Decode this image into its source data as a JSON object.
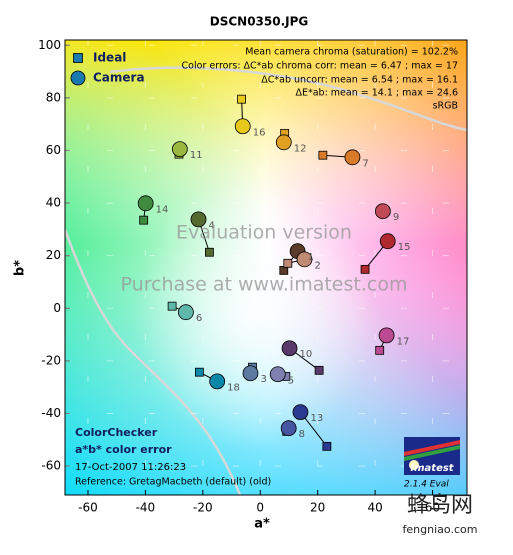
{
  "chart_data": {
    "type": "scatter",
    "title": "DSCN0350.JPG",
    "x_label": "a*",
    "y_label": "b*",
    "xlim": [
      -68,
      72
    ],
    "ylim": [
      -71,
      102
    ],
    "xticks": [
      -60,
      -40,
      -20,
      0,
      20,
      40,
      60
    ],
    "yticks": [
      -60,
      -40,
      -20,
      0,
      20,
      40,
      60,
      80,
      100
    ],
    "grid": true,
    "legend": "upper left",
    "labels": [
      "1",
      "2",
      "3",
      "4",
      "5",
      "6",
      "7",
      "8",
      "9",
      "10",
      "11",
      "12",
      "13",
      "14",
      "15",
      "16",
      "17",
      "18"
    ],
    "colors": [
      "#5a3a28",
      "#c08a74",
      "#5c7aa0",
      "#556a30",
      "#7e80b0",
      "#60b8aa",
      "#d87a28",
      "#4656a0",
      "#c04a58",
      "#5a3a6a",
      "#9ab840",
      "#e0a024",
      "#2a3a90",
      "#408a40",
      "#b02830",
      "#e8c818",
      "#bc4a92",
      "#0888a8"
    ],
    "series": [
      {
        "name": "Ideal",
        "marker": "square",
        "x": [
          8.2,
          9.6,
          -2.7,
          -17.7,
          8.9,
          -30.7,
          21.8,
          9.2,
          42.7,
          20.5,
          -28.3,
          8.5,
          23.2,
          -40.6,
          36.5,
          -6.5,
          41.6,
          -21.2
        ],
        "values": [
          14.4,
          17.1,
          -22.4,
          21.3,
          -25.9,
          0.8,
          58.2,
          -46.8,
          36.9,
          -23.6,
          58.6,
          66.5,
          -52.5,
          33.5,
          14.8,
          79.5,
          -16,
          -24.3
        ]
      },
      {
        "name": "Camera",
        "marker": "circle",
        "x": [
          13,
          15.4,
          -3.4,
          -21.5,
          6.1,
          -25.9,
          32.1,
          9.9,
          42.7,
          10.2,
          -28,
          8.2,
          14,
          -39.9,
          44.4,
          -6.1,
          44,
          -15
        ],
        "values": [
          21.7,
          18.6,
          -24.7,
          33.8,
          -25.1,
          -1.5,
          57.4,
          -45.6,
          36.9,
          -15.2,
          60.5,
          63.1,
          -39.5,
          39.9,
          25.5,
          69.2,
          -10.3,
          -27.8
        ]
      }
    ],
    "annotations": [
      "Mean camera chroma (saturation) = 102.2%",
      "Color errors:  ΔC*ab chroma corr:  mean = 6.47 ;  max = 17",
      "ΔC*ab uncorr:  mean = 6.54 ;  max = 16.1",
      "ΔE*ab:  mean = 14.1 ;  max = 24.6",
      "sRGB"
    ],
    "watermarks": [
      "Evaluation version",
      "Purchase at www.imatest.com"
    ],
    "info": [
      "ColorChecker",
      "a*b* color error",
      "17-Oct-2007 11:26:23",
      "Reference: GretagMacbeth (default) (old)"
    ],
    "logo": [
      "Imatest",
      "2.1.4  Eval"
    ],
    "site": [
      "蜂鸟网",
      "fengniao.com"
    ]
  }
}
